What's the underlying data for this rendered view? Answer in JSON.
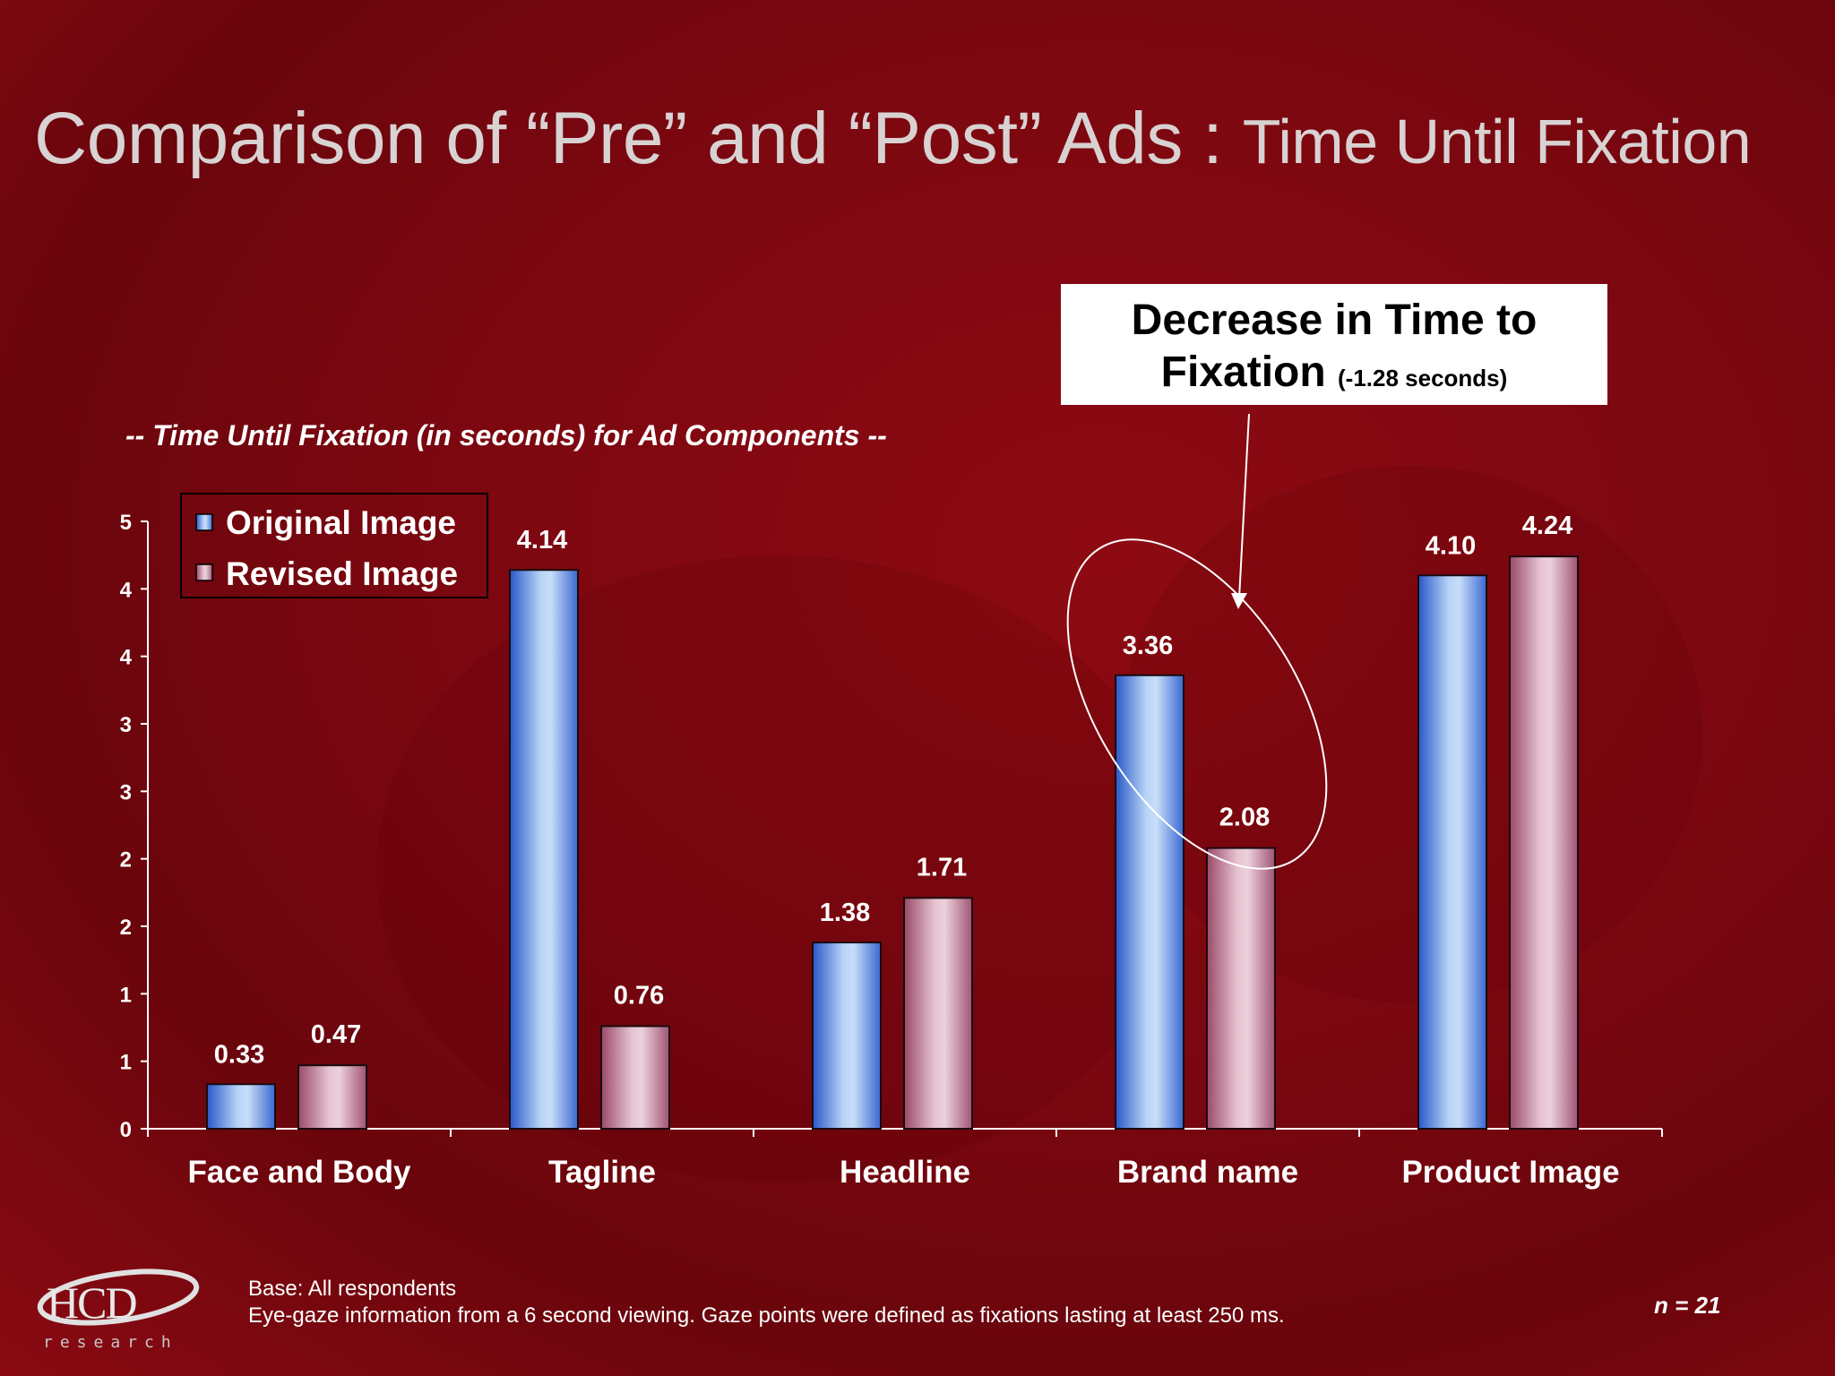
{
  "slide": {
    "title_main": "Comparison of “Pre” and “Post” Ads : ",
    "title_sub": "Time Until Fixation",
    "callout_line1": "Decrease in Time to",
    "callout_line2": "Fixation ",
    "callout_small": "(-1.28 seconds)",
    "base_line1": "Base:  All respondents",
    "base_line2": "Eye-gaze information from a 6 second viewing.  Gaze points were defined as fixations lasting at least 250 ms.",
    "n_label": "n = 21",
    "logo_text": "HCD",
    "logo_sub": "research"
  },
  "chart_data": {
    "type": "bar",
    "subtitle": "--  Time Until Fixation (in seconds) for Ad Components --",
    "categories": [
      "Face and Body",
      "Tagline",
      "Headline",
      "Brand name",
      "Product Image"
    ],
    "series": [
      {
        "name": "Original Image",
        "values": [
          0.33,
          4.14,
          1.38,
          3.36,
          4.1
        ],
        "labels": [
          "0.33",
          "4.14",
          "1.38",
          "3.36",
          "4.10"
        ]
      },
      {
        "name": "Revised Image",
        "values": [
          0.47,
          0.76,
          1.71,
          2.08,
          4.24
        ],
        "labels": [
          "0.47",
          "0.76",
          "1.71",
          "2.08",
          "4.24"
        ]
      }
    ],
    "ylim": [
      0,
      4.5
    ],
    "yticks": [
      0,
      0.5,
      1,
      1.5,
      2,
      2.5,
      3,
      3.5,
      4,
      4.5
    ],
    "ytick_labels": [
      "0",
      "1",
      "1",
      "2",
      "2",
      "3",
      "3",
      "4",
      "4",
      "5"
    ],
    "legend_position": "top-left",
    "highlight_category": "Brand name",
    "colors": {
      "original": "#6f9fe6",
      "revised": "#c98da3",
      "axis": "#ffffff"
    }
  }
}
